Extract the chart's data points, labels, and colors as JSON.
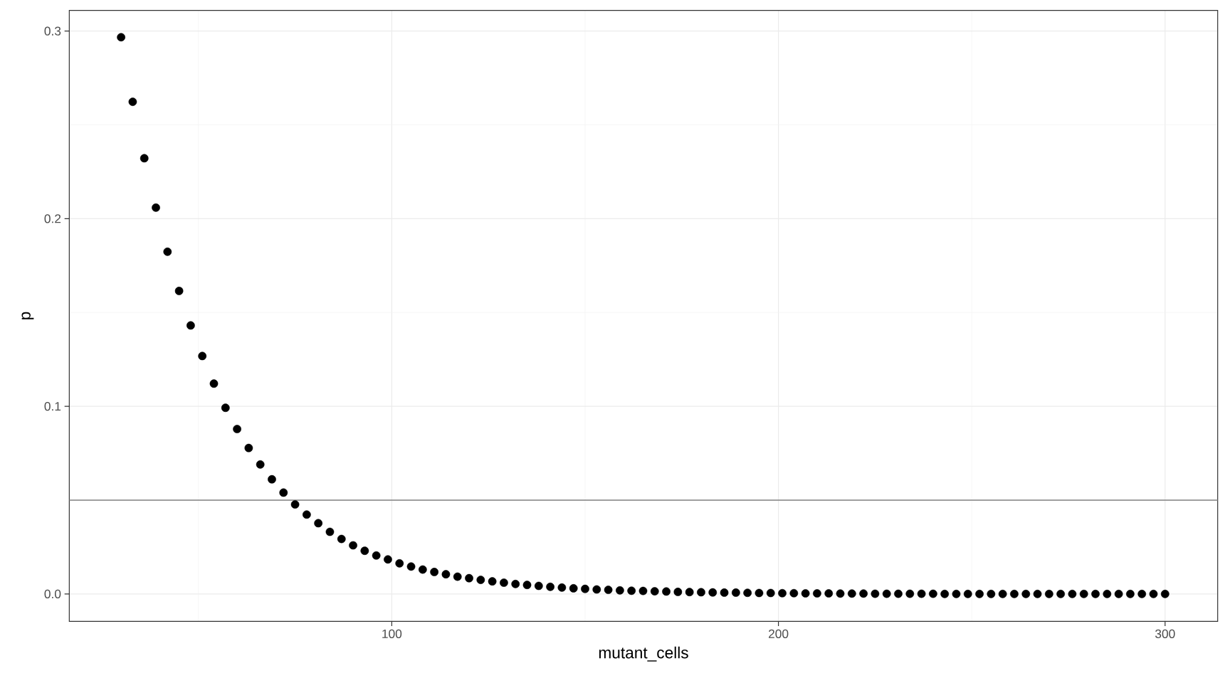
{
  "chart_data": {
    "type": "scatter",
    "xlabel": "mutant_cells",
    "ylabel": "p",
    "x": [
      30,
      33,
      36,
      39,
      42,
      45,
      48,
      51,
      54,
      57,
      60,
      63,
      66,
      69,
      72,
      75,
      78,
      81,
      84,
      87,
      90,
      93,
      96,
      99,
      102,
      105,
      108,
      111,
      114,
      117,
      120,
      123,
      126,
      129,
      132,
      135,
      138,
      141,
      144,
      147,
      150,
      153,
      156,
      159,
      162,
      165,
      168,
      171,
      174,
      177,
      180,
      183,
      186,
      189,
      192,
      195,
      198,
      201,
      204,
      207,
      210,
      213,
      216,
      219,
      222,
      225,
      228,
      231,
      234,
      237,
      240,
      243,
      246,
      249,
      252,
      255,
      258,
      261,
      264,
      267,
      270,
      273,
      276,
      279,
      282,
      285,
      288,
      291,
      294,
      297,
      300
    ],
    "values": [
      0.2967,
      0.2623,
      0.2322,
      0.2059,
      0.1824,
      0.1615,
      0.1431,
      0.1268,
      0.1121,
      0.0992,
      0.0879,
      0.0778,
      0.069,
      0.0611,
      0.054,
      0.0477,
      0.0423,
      0.0377,
      0.0331,
      0.0293,
      0.0259,
      0.023,
      0.0205,
      0.0184,
      0.0163,
      0.0146,
      0.013,
      0.0117,
      0.0105,
      0.0092,
      0.0084,
      0.0075,
      0.0067,
      0.006,
      0.0053,
      0.0048,
      0.0043,
      0.0038,
      0.0034,
      0.003,
      0.0027,
      0.0024,
      0.0022,
      0.0019,
      0.0017,
      0.0016,
      0.0014,
      0.0013,
      0.0011,
      0.001,
      0.0009,
      0.0008,
      0.0007,
      0.0007,
      0.0006,
      0.0005,
      0.0005,
      0.0004,
      0.0004,
      0.0003,
      0.0003,
      0.0003,
      0.0002,
      0.0002,
      0.0002,
      0.0001,
      0.0001,
      0.0001,
      0.0001,
      0.0001,
      0.0001,
      0,
      0,
      0,
      0,
      0,
      0,
      0,
      0,
      0,
      0,
      0,
      0,
      0,
      0,
      0,
      0,
      0,
      0,
      0,
      0
    ],
    "color": "#000000",
    "xlim": [
      16.6,
      313.6
    ],
    "ylim": [
      -0.0146,
      0.311
    ],
    "xticks": [
      100,
      200,
      300
    ],
    "yticks": [
      {
        "value": 0,
        "label": "0.0"
      },
      {
        "value": 0.1,
        "label": "0.1"
      },
      {
        "value": 0.2,
        "label": "0.2"
      },
      {
        "value": 0.3,
        "label": "0.3"
      }
    ],
    "grid": true,
    "ref_lines": [
      {
        "axis": "y",
        "value": 0.05,
        "color": "#808080"
      }
    ]
  }
}
